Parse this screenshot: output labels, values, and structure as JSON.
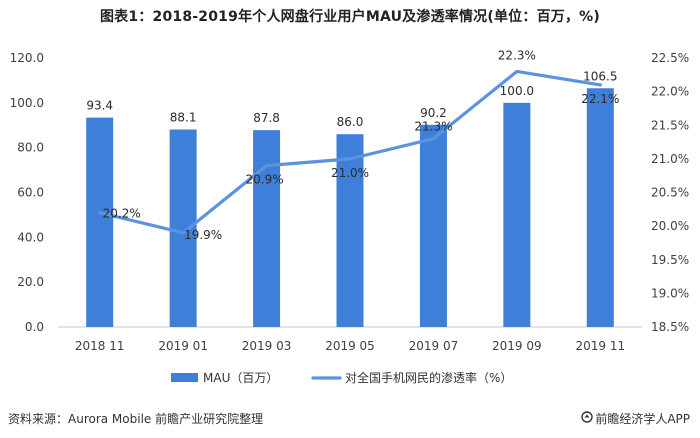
{
  "title": "图表1：2018-2019年个人网盘行业用户MAU及渗透率情况(单位：百万，%)",
  "source": "资料来源：Aurora Mobile 前瞻产业研究院整理",
  "brand": "前瞻经济学人APP",
  "brand_icon": "brand-logo-icon",
  "colors": {
    "bar": "#3d7fd9",
    "line": "#5b93e0",
    "axis": "#c8c8c8"
  },
  "chart_data": {
    "type": "bar+line",
    "categories": [
      "2018 11",
      "2019 01",
      "2019 03",
      "2019 05",
      "2019 07",
      "2019 09",
      "2019 11"
    ],
    "series": [
      {
        "name": "MAU（百万）",
        "type": "bar",
        "axis": "left",
        "values": [
          93.4,
          88.1,
          87.8,
          86.0,
          90.2,
          100.0,
          106.5
        ],
        "labels": [
          "93.4",
          "88.1",
          "87.8",
          "86.0",
          "90.2",
          "100.0",
          "106.5"
        ]
      },
      {
        "name": "对全国手机网民的渗透率（%）",
        "type": "line",
        "axis": "right",
        "values": [
          20.2,
          19.9,
          20.9,
          21.0,
          21.3,
          22.3,
          22.1
        ],
        "labels": [
          "20.2%",
          "19.9%",
          "20.9%",
          "21.0%",
          "21.3%",
          "22.3%",
          "22.1%"
        ]
      }
    ],
    "y_left": {
      "range": [
        0,
        120
      ],
      "ticks": [
        "0.0",
        "20.0",
        "40.0",
        "60.0",
        "80.0",
        "100.0",
        "120.0"
      ]
    },
    "y_right": {
      "range": [
        18.5,
        22.5
      ],
      "ticks": [
        "18.5%",
        "19.0%",
        "19.5%",
        "20.0%",
        "20.5%",
        "21.0%",
        "21.5%",
        "22.0%",
        "22.5%"
      ]
    },
    "legend_position": "bottom"
  }
}
